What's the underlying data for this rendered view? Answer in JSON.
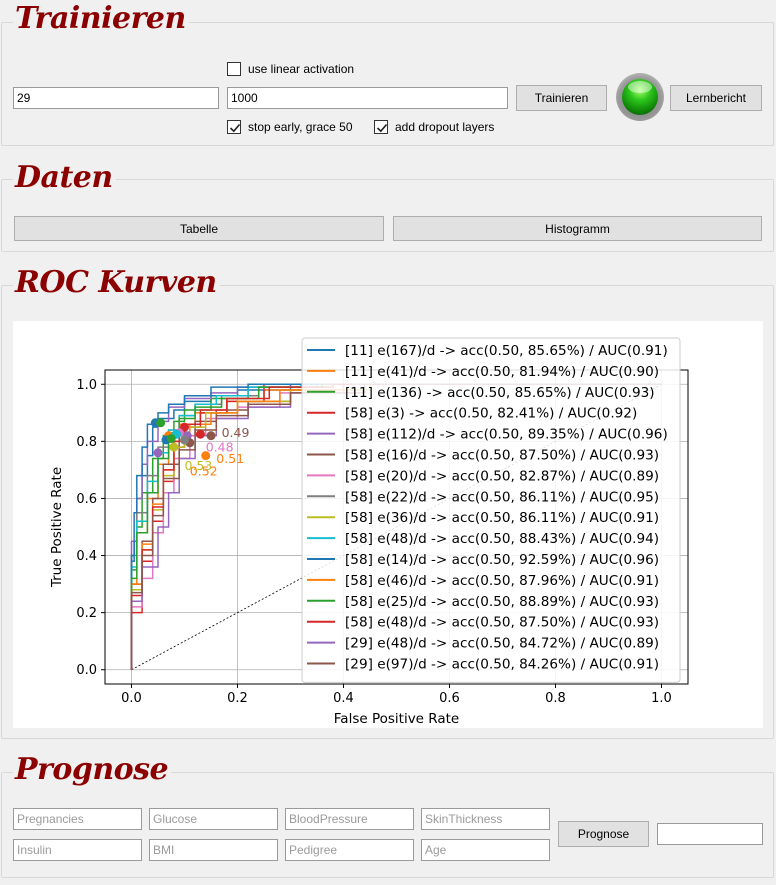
{
  "training": {
    "title": "Trainieren",
    "layers_value": "29",
    "epochs_value": "1000",
    "linear_activation": {
      "label": "use linear activation",
      "checked": false
    },
    "stop_early": {
      "label": "stop early, grace 50",
      "checked": true
    },
    "dropout": {
      "label": "add dropout layers",
      "checked": true
    },
    "train_button": "Trainieren",
    "status_light": "green",
    "report_button": "Lernbericht"
  },
  "data_section": {
    "title": "Daten",
    "table_button": "Tabelle",
    "histogram_button": "Histogramm"
  },
  "roc_section": {
    "title": "ROC Kurven"
  },
  "chart_data": {
    "type": "line",
    "xlabel": "False Positive Rate",
    "ylabel": "True Positive Rate",
    "xlim": [
      -0.05,
      1.05
    ],
    "ylim": [
      -0.05,
      1.05
    ],
    "xticks": [
      "0.0",
      "0.2",
      "0.4",
      "0.6",
      "0.8",
      "1.0"
    ],
    "yticks": [
      "0.0",
      "0.2",
      "0.4",
      "0.6",
      "0.8",
      "1.0"
    ],
    "grid": true,
    "legend_position": "top-right",
    "reference_line": {
      "style": "dotted",
      "color": "#000000",
      "x": [
        0,
        1
      ],
      "y": [
        0,
        1
      ]
    },
    "series": [
      {
        "name": "[11] e(167)/d -> acc(0.50, 85.65%) / AUC(0.91)",
        "color": "#1f77b4",
        "x": [
          0,
          0.005,
          0.01,
          0.02,
          0.03,
          0.04,
          0.05,
          0.08,
          0.1,
          0.15,
          0.2,
          0.3,
          0.5,
          1.0
        ],
        "y": [
          0,
          0.38,
          0.45,
          0.6,
          0.68,
          0.75,
          0.85,
          0.88,
          0.91,
          0.94,
          0.96,
          0.98,
          1.0,
          1.0
        ]
      },
      {
        "name": "[11] e(41)/d -> acc(0.50, 81.94%) / AUC(0.90)",
        "color": "#ff7f0e",
        "x": [
          0,
          0.01,
          0.03,
          0.05,
          0.07,
          0.09,
          0.12,
          0.18,
          0.25,
          0.4,
          1.0
        ],
        "y": [
          0,
          0.3,
          0.48,
          0.6,
          0.72,
          0.8,
          0.86,
          0.9,
          0.94,
          0.98,
          1.0
        ]
      },
      {
        "name": "[11] e(136) -> acc(0.50, 85.65%) / AUC(0.93)",
        "color": "#2ca02c",
        "x": [
          0,
          0.01,
          0.02,
          0.04,
          0.06,
          0.08,
          0.1,
          0.15,
          0.22,
          0.35,
          1.0
        ],
        "y": [
          0,
          0.35,
          0.5,
          0.62,
          0.74,
          0.82,
          0.87,
          0.91,
          0.95,
          0.99,
          1.0
        ]
      },
      {
        "name": "[58] e(3) -> acc(0.50, 82.41%) / AUC(0.92)",
        "color": "#d62728",
        "x": [
          0,
          0.02,
          0.04,
          0.06,
          0.08,
          0.1,
          0.13,
          0.18,
          0.25,
          0.35,
          1.0
        ],
        "y": [
          0,
          0.2,
          0.38,
          0.52,
          0.66,
          0.78,
          0.85,
          0.9,
          0.94,
          1.0,
          1.0
        ]
      },
      {
        "name": "[58] e(112)/d -> acc(0.50, 89.35%) / AUC(0.96)",
        "color": "#9467bd",
        "x": [
          0,
          0.01,
          0.02,
          0.03,
          0.05,
          0.07,
          0.1,
          0.15,
          0.2,
          0.3,
          1.0
        ],
        "y": [
          0,
          0.45,
          0.6,
          0.72,
          0.8,
          0.87,
          0.92,
          0.95,
          0.97,
          0.99,
          1.0
        ]
      },
      {
        "name": "[58] e(16)/d -> acc(0.50, 87.50%) / AUC(0.93)",
        "color": "#8c564b",
        "x": [
          0,
          0.02,
          0.04,
          0.06,
          0.09,
          0.12,
          0.16,
          0.22,
          0.3,
          0.45,
          1.0
        ],
        "y": [
          0,
          0.3,
          0.45,
          0.6,
          0.72,
          0.82,
          0.87,
          0.91,
          0.94,
          0.98,
          1.0
        ]
      },
      {
        "name": "[58] e(20)/d -> acc(0.50, 82.87%) / AUC(0.89)",
        "color": "#e377c2",
        "x": [
          0,
          0.02,
          0.04,
          0.06,
          0.08,
          0.11,
          0.14,
          0.2,
          0.28,
          0.4,
          1.0
        ],
        "y": [
          0,
          0.22,
          0.32,
          0.48,
          0.62,
          0.74,
          0.82,
          0.88,
          0.92,
          0.97,
          1.0
        ]
      },
      {
        "name": "[58] e(22)/d -> acc(0.50, 86.11%) / AUC(0.95)",
        "color": "#7f7f7f",
        "x": [
          0,
          0.01,
          0.03,
          0.05,
          0.07,
          0.09,
          0.12,
          0.17,
          0.24,
          0.35,
          1.0
        ],
        "y": [
          0,
          0.4,
          0.55,
          0.68,
          0.78,
          0.84,
          0.89,
          0.93,
          0.96,
          0.99,
          1.0
        ]
      },
      {
        "name": "[58] e(36)/d -> acc(0.50, 86.11%) / AUC(0.91)",
        "color": "#bcbd22",
        "x": [
          0,
          0.02,
          0.04,
          0.06,
          0.08,
          0.1,
          0.14,
          0.2,
          0.3,
          0.45,
          1.0
        ],
        "y": [
          0,
          0.28,
          0.42,
          0.56,
          0.68,
          0.78,
          0.85,
          0.9,
          0.94,
          0.98,
          1.0
        ]
      },
      {
        "name": "[58] e(48)/d -> acc(0.50, 88.43%) / AUC(0.94)",
        "color": "#17becf",
        "x": [
          0,
          0.01,
          0.03,
          0.05,
          0.07,
          0.09,
          0.12,
          0.16,
          0.22,
          0.32,
          1.0
        ],
        "y": [
          0,
          0.36,
          0.52,
          0.66,
          0.76,
          0.84,
          0.89,
          0.93,
          0.96,
          0.99,
          1.0
        ]
      },
      {
        "name": "[58] e(14)/d -> acc(0.50, 92.59%) / AUC(0.96)",
        "color": "#1f77b4",
        "x": [
          0,
          0.005,
          0.01,
          0.02,
          0.03,
          0.05,
          0.07,
          0.1,
          0.15,
          0.22,
          1.0
        ],
        "y": [
          0,
          0.4,
          0.55,
          0.68,
          0.78,
          0.86,
          0.9,
          0.93,
          0.96,
          0.99,
          1.0
        ]
      },
      {
        "name": "[58] e(46)/d -> acc(0.50, 87.96%) / AUC(0.91)",
        "color": "#ff7f0e",
        "x": [
          0,
          0.02,
          0.04,
          0.06,
          0.08,
          0.11,
          0.15,
          0.2,
          0.28,
          0.4,
          1.0
        ],
        "y": [
          0,
          0.3,
          0.44,
          0.58,
          0.7,
          0.8,
          0.86,
          0.9,
          0.94,
          0.98,
          1.0
        ]
      },
      {
        "name": "[58] e(25)/d -> acc(0.50, 88.89%) / AUC(0.93)",
        "color": "#2ca02c",
        "x": [
          0,
          0.01,
          0.03,
          0.05,
          0.07,
          0.09,
          0.12,
          0.17,
          0.24,
          0.36,
          1.0
        ],
        "y": [
          0,
          0.32,
          0.48,
          0.62,
          0.74,
          0.83,
          0.88,
          0.92,
          0.95,
          0.99,
          1.0
        ]
      },
      {
        "name": "[58] e(48)/d -> acc(0.50, 87.50%) / AUC(0.93)",
        "color": "#d62728",
        "x": [
          0,
          0.02,
          0.04,
          0.06,
          0.08,
          0.1,
          0.13,
          0.18,
          0.26,
          0.38,
          1.0
        ],
        "y": [
          0,
          0.26,
          0.42,
          0.57,
          0.7,
          0.8,
          0.86,
          0.91,
          0.95,
          0.99,
          1.0
        ]
      },
      {
        "name": "[29] e(48)/d -> acc(0.50, 84.72%) / AUC(0.89)",
        "color": "#9467bd",
        "x": [
          0,
          0.02,
          0.05,
          0.07,
          0.09,
          0.12,
          0.16,
          0.22,
          0.3,
          0.42,
          1.0
        ],
        "y": [
          0,
          0.24,
          0.36,
          0.5,
          0.62,
          0.74,
          0.82,
          0.88,
          0.92,
          0.97,
          1.0
        ]
      },
      {
        "name": "[29] e(97)/d -> acc(0.50, 84.26%) / AUC(0.91)",
        "color": "#8c564b",
        "x": [
          0,
          0.02,
          0.04,
          0.06,
          0.09,
          0.12,
          0.16,
          0.22,
          0.3,
          0.44,
          1.0
        ],
        "y": [
          0,
          0.27,
          0.4,
          0.54,
          0.67,
          0.77,
          0.84,
          0.89,
          0.93,
          0.97,
          1.0
        ]
      }
    ],
    "threshold_markers": [
      {
        "x": 0.045,
        "y": 0.865,
        "color": "#1f77b4"
      },
      {
        "x": 0.055,
        "y": 0.865,
        "color": "#2ca02c"
      },
      {
        "x": 0.07,
        "y": 0.82,
        "color": "#ff7f0e"
      },
      {
        "x": 0.1,
        "y": 0.85,
        "color": "#d62728"
      },
      {
        "x": 0.105,
        "y": 0.82,
        "color": "#9467bd"
      },
      {
        "x": 0.11,
        "y": 0.795,
        "color": "#8c564b"
      },
      {
        "x": 0.09,
        "y": 0.83,
        "color": "#e377c2"
      },
      {
        "x": 0.1,
        "y": 0.805,
        "color": "#7f7f7f"
      },
      {
        "x": 0.08,
        "y": 0.78,
        "color": "#bcbd22"
      },
      {
        "x": 0.085,
        "y": 0.825,
        "color": "#17becf"
      },
      {
        "x": 0.065,
        "y": 0.805,
        "color": "#1f77b4"
      },
      {
        "x": 0.14,
        "y": 0.75,
        "color": "#ff7f0e"
      },
      {
        "x": 0.075,
        "y": 0.81,
        "color": "#2ca02c"
      },
      {
        "x": 0.13,
        "y": 0.825,
        "color": "#d62728"
      },
      {
        "x": 0.05,
        "y": 0.76,
        "color": "#9467bd"
      },
      {
        "x": 0.15,
        "y": 0.82,
        "color": "#8c564b"
      }
    ],
    "annotations": [
      {
        "text": "0.49",
        "x": 0.17,
        "y": 0.815,
        "color": "#8c564b"
      },
      {
        "text": "0.48",
        "x": 0.14,
        "y": 0.765,
        "color": "#e377c2"
      },
      {
        "text": "0.51",
        "x": 0.16,
        "y": 0.725,
        "color": "#ff7f0e"
      },
      {
        "text": "0.53",
        "x": 0.1,
        "y": 0.7,
        "color": "#bcbd22"
      },
      {
        "text": "0.52",
        "x": 0.11,
        "y": 0.68,
        "color": "#ff7f0e"
      }
    ]
  },
  "prediction": {
    "title": "Prognose",
    "fields": [
      {
        "placeholder": "Pregnancies"
      },
      {
        "placeholder": "Glucose"
      },
      {
        "placeholder": "BloodPressure"
      },
      {
        "placeholder": "SkinThickness"
      },
      {
        "placeholder": "Insulin"
      },
      {
        "placeholder": "BMI"
      },
      {
        "placeholder": "Pedigree"
      },
      {
        "placeholder": "Age"
      }
    ],
    "button": "Prognose",
    "result_value": ""
  }
}
